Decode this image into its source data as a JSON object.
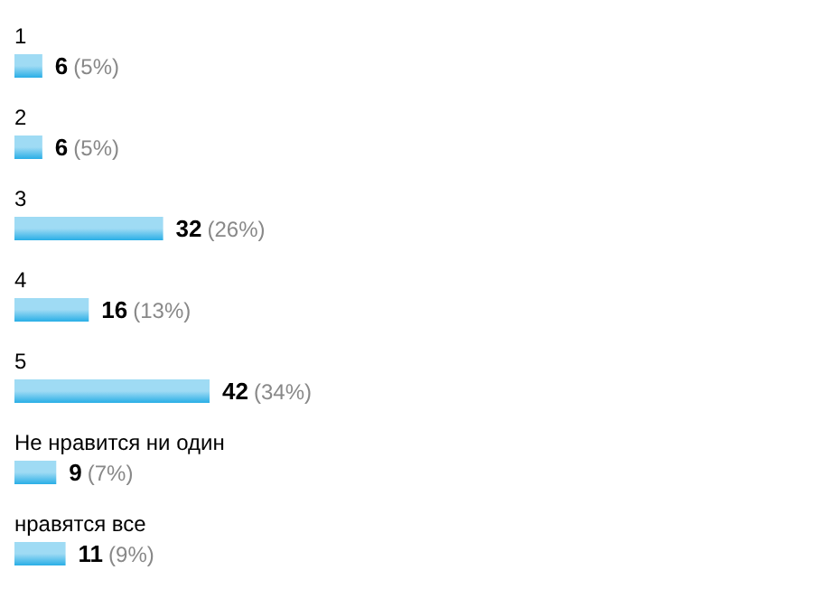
{
  "chart_data": {
    "type": "bar",
    "orientation": "horizontal",
    "categories": [
      "1",
      "2",
      "3",
      "4",
      "5",
      "Не нравится ни один",
      "нравятся все"
    ],
    "values": [
      6,
      6,
      32,
      16,
      42,
      9,
      11
    ],
    "value_labels": [
      "6 (5%)",
      "6 (5%)",
      "32 (26%)",
      "16 (13%)",
      "42 (34%)",
      "9 (7%)",
      "11 (9%)"
    ],
    "color": "#29aee6"
  }
}
